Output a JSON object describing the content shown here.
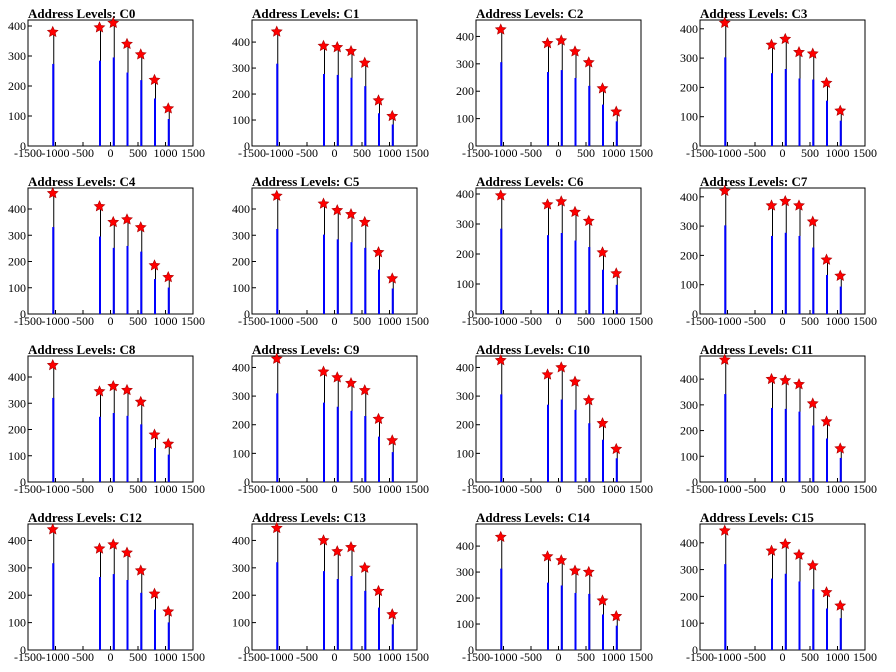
{
  "colors": {
    "histogram": "#0000ff",
    "marker": "#ff0000",
    "axis": "#000000"
  },
  "chart_data": [
    {
      "type": "bar",
      "title": "Address Levels: C0",
      "xlim": [
        -1500,
        1500
      ],
      "ylim": [
        0,
        420
      ],
      "xticks": [
        -1500,
        -1000,
        -500,
        0,
        500,
        1000,
        1500
      ],
      "yticks": [
        0,
        100,
        200,
        300,
        400
      ],
      "marker_x": [
        -1050,
        -200,
        50,
        300,
        550,
        800,
        1050
      ],
      "marker_y": [
        380,
        395,
        410,
        340,
        305,
        220,
        125
      ]
    },
    {
      "type": "bar",
      "title": "Address Levels: C1",
      "xlim": [
        -1500,
        1500
      ],
      "ylim": [
        0,
        485
      ],
      "xticks": [
        -1500,
        -1000,
        -500,
        0,
        500,
        1000,
        1500
      ],
      "yticks": [
        0,
        100,
        200,
        300,
        400
      ],
      "marker_x": [
        -1050,
        -200,
        50,
        300,
        550,
        800,
        1050
      ],
      "marker_y": [
        440,
        385,
        380,
        365,
        320,
        175,
        115
      ]
    },
    {
      "type": "bar",
      "title": "Address Levels: C2",
      "xlim": [
        -1500,
        1500
      ],
      "ylim": [
        0,
        460
      ],
      "xticks": [
        -1500,
        -1000,
        -500,
        0,
        500,
        1000,
        1500
      ],
      "yticks": [
        0,
        100,
        200,
        300,
        400
      ],
      "marker_x": [
        -1050,
        -200,
        50,
        300,
        550,
        800,
        1050
      ],
      "marker_y": [
        425,
        375,
        385,
        345,
        305,
        210,
        125
      ]
    },
    {
      "type": "bar",
      "title": "Address Levels: C3",
      "xlim": [
        -1500,
        1500
      ],
      "ylim": [
        0,
        430
      ],
      "xticks": [
        -1500,
        -1000,
        -500,
        0,
        500,
        1000,
        1500
      ],
      "yticks": [
        0,
        100,
        200,
        300,
        400
      ],
      "marker_x": [
        -1050,
        -200,
        50,
        300,
        550,
        800,
        1050
      ],
      "marker_y": [
        420,
        345,
        365,
        320,
        315,
        215,
        120
      ]
    },
    {
      "type": "bar",
      "title": "Address Levels: C4",
      "xlim": [
        -1500,
        1500
      ],
      "ylim": [
        0,
        480
      ],
      "xticks": [
        -1500,
        -1000,
        -500,
        0,
        500,
        1000,
        1500
      ],
      "yticks": [
        0,
        100,
        200,
        300,
        400
      ],
      "marker_x": [
        -1050,
        -200,
        50,
        300,
        550,
        800,
        1050
      ],
      "marker_y": [
        460,
        410,
        350,
        360,
        330,
        185,
        140
      ]
    },
    {
      "type": "bar",
      "title": "Address Levels: C5",
      "xlim": [
        -1500,
        1500
      ],
      "ylim": [
        0,
        480
      ],
      "xticks": [
        -1500,
        -1000,
        -500,
        0,
        500,
        1000,
        1500
      ],
      "yticks": [
        0,
        100,
        200,
        300,
        400
      ],
      "marker_x": [
        -1050,
        -200,
        50,
        300,
        550,
        800,
        1050
      ],
      "marker_y": [
        450,
        420,
        395,
        380,
        350,
        235,
        135
      ]
    },
    {
      "type": "bar",
      "title": "Address Levels: C6",
      "xlim": [
        -1500,
        1500
      ],
      "ylim": [
        0,
        420
      ],
      "xticks": [
        -1500,
        -1000,
        -500,
        0,
        500,
        1000,
        1500
      ],
      "yticks": [
        0,
        100,
        200,
        300,
        400
      ],
      "marker_x": [
        -1050,
        -200,
        50,
        300,
        550,
        800,
        1050
      ],
      "marker_y": [
        395,
        365,
        375,
        340,
        310,
        205,
        135
      ]
    },
    {
      "type": "bar",
      "title": "Address Levels: C7",
      "xlim": [
        -1500,
        1500
      ],
      "ylim": [
        0,
        430
      ],
      "xticks": [
        -1500,
        -1000,
        -500,
        0,
        500,
        1000,
        1500
      ],
      "yticks": [
        0,
        100,
        200,
        300,
        400
      ],
      "marker_x": [
        -1050,
        -200,
        50,
        300,
        550,
        800,
        1050
      ],
      "marker_y": [
        420,
        370,
        385,
        370,
        315,
        185,
        130
      ]
    },
    {
      "type": "bar",
      "title": "Address Levels: C8",
      "xlim": [
        -1500,
        1500
      ],
      "ylim": [
        0,
        480
      ],
      "xticks": [
        -1500,
        -1000,
        -500,
        0,
        500,
        1000,
        1500
      ],
      "yticks": [
        0,
        100,
        200,
        300,
        400
      ],
      "marker_x": [
        -1050,
        -200,
        50,
        300,
        550,
        800,
        1050
      ],
      "marker_y": [
        445,
        345,
        365,
        350,
        305,
        180,
        145
      ]
    },
    {
      "type": "bar",
      "title": "Address Levels: C9",
      "xlim": [
        -1500,
        1500
      ],
      "ylim": [
        0,
        440
      ],
      "xticks": [
        -1500,
        -1000,
        -500,
        0,
        500,
        1000,
        1500
      ],
      "yticks": [
        0,
        100,
        200,
        300,
        400
      ],
      "marker_x": [
        -1050,
        -200,
        50,
        300,
        550,
        800,
        1050
      ],
      "marker_y": [
        430,
        385,
        365,
        345,
        320,
        220,
        145
      ]
    },
    {
      "type": "bar",
      "title": "Address Levels: C10",
      "xlim": [
        -1500,
        1500
      ],
      "ylim": [
        0,
        440
      ],
      "xticks": [
        -1500,
        -1000,
        -500,
        0,
        500,
        1000,
        1500
      ],
      "yticks": [
        0,
        100,
        200,
        300,
        400
      ],
      "marker_x": [
        -1050,
        -200,
        50,
        300,
        550,
        800,
        1050
      ],
      "marker_y": [
        425,
        375,
        400,
        350,
        285,
        205,
        115
      ]
    },
    {
      "type": "bar",
      "title": "Address Levels: C11",
      "xlim": [
        -1500,
        1500
      ],
      "ylim": [
        0,
        490
      ],
      "xticks": [
        -1500,
        -1000,
        -500,
        0,
        500,
        1000,
        1500
      ],
      "yticks": [
        0,
        100,
        200,
        300,
        400
      ],
      "marker_x": [
        -1050,
        -200,
        50,
        300,
        550,
        800,
        1050
      ],
      "marker_y": [
        475,
        400,
        395,
        380,
        305,
        235,
        130
      ]
    },
    {
      "type": "bar",
      "title": "Address Levels: C12",
      "xlim": [
        -1500,
        1500
      ],
      "ylim": [
        0,
        460
      ],
      "xticks": [
        -1500,
        -1000,
        -500,
        0,
        500,
        1000,
        1500
      ],
      "yticks": [
        0,
        100,
        200,
        300,
        400
      ],
      "marker_x": [
        -1050,
        -200,
        50,
        300,
        550,
        800,
        1050
      ],
      "marker_y": [
        440,
        370,
        385,
        355,
        290,
        205,
        140
      ]
    },
    {
      "type": "bar",
      "title": "Address Levels: C13",
      "xlim": [
        -1500,
        1500
      ],
      "ylim": [
        0,
        460
      ],
      "xticks": [
        -1500,
        -1000,
        -500,
        0,
        500,
        1000,
        1500
      ],
      "yticks": [
        0,
        100,
        200,
        300,
        400
      ],
      "marker_x": [
        -1050,
        -200,
        50,
        300,
        550,
        800,
        1050
      ],
      "marker_y": [
        445,
        400,
        360,
        375,
        300,
        215,
        130
      ]
    },
    {
      "type": "bar",
      "title": "Address Levels: C14",
      "xlim": [
        -1500,
        1500
      ],
      "ylim": [
        0,
        485
      ],
      "xticks": [
        -1500,
        -1000,
        -500,
        0,
        500,
        1000,
        1500
      ],
      "yticks": [
        0,
        100,
        200,
        300,
        400
      ],
      "marker_x": [
        -1050,
        -200,
        50,
        300,
        550,
        800,
        1050
      ],
      "marker_y": [
        435,
        360,
        345,
        305,
        300,
        190,
        130
      ]
    },
    {
      "type": "bar",
      "title": "Address Levels: C15",
      "xlim": [
        -1500,
        1500
      ],
      "ylim": [
        0,
        470
      ],
      "xticks": [
        -1500,
        -1000,
        -500,
        0,
        500,
        1000,
        1500
      ],
      "yticks": [
        0,
        100,
        200,
        300,
        400
      ],
      "marker_x": [
        -1050,
        -200,
        50,
        300,
        550,
        800,
        1050
      ],
      "marker_y": [
        445,
        370,
        395,
        355,
        315,
        215,
        165
      ]
    }
  ]
}
